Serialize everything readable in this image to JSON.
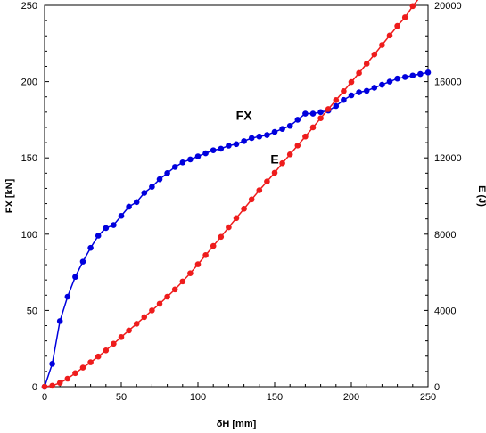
{
  "chart_data": {
    "type": "line",
    "xlabel": "δH [mm]",
    "ylabel": "FX [kN]",
    "y2label": "E (J)",
    "xlim": [
      0,
      250
    ],
    "ylim": [
      0,
      250
    ],
    "y2lim": [
      0,
      20000
    ],
    "xticks": [
      "0",
      "50",
      "100",
      "150",
      "200",
      "250"
    ],
    "yticks": [
      "0",
      "50",
      "100",
      "150",
      "200",
      "250"
    ],
    "y2ticks": [
      "0",
      "4000",
      "8000",
      "12000",
      "16000",
      "20000"
    ],
    "grid": false,
    "series": [
      {
        "name": "FX",
        "axis": "left",
        "color": "#0000dd",
        "x": [
          0,
          5,
          10,
          15,
          20,
          25,
          30,
          35,
          40,
          45,
          50,
          55,
          60,
          65,
          70,
          75,
          80,
          85,
          90,
          95,
          100,
          105,
          110,
          115,
          120,
          125,
          130,
          135,
          140,
          145,
          150,
          155,
          160,
          165,
          170,
          175,
          180,
          185,
          190,
          195,
          200,
          205,
          210,
          215,
          220,
          225,
          230,
          235,
          240,
          245,
          250
        ],
        "values": [
          0,
          15,
          43,
          59,
          72,
          82,
          91,
          99,
          104,
          106,
          112,
          118,
          121,
          127,
          131,
          136,
          140,
          144,
          147,
          149,
          151,
          153,
          155,
          156,
          158,
          159,
          161,
          163,
          164,
          165,
          167,
          169,
          171,
          175,
          179,
          179,
          180,
          181,
          184,
          188,
          191,
          193,
          194,
          196,
          198,
          200,
          202,
          203,
          204,
          205,
          206
        ]
      },
      {
        "name": "E",
        "axis": "right",
        "color": "#ee1c1c",
        "x": [
          0,
          5,
          10,
          15,
          20,
          25,
          30,
          35,
          40,
          45,
          50,
          55,
          60,
          65,
          70,
          75,
          80,
          85,
          90,
          95,
          100,
          105,
          110,
          115,
          120,
          125,
          130,
          135,
          140,
          145,
          150,
          155,
          160,
          165,
          170,
          175,
          180,
          185,
          190,
          195,
          200,
          205,
          210,
          215,
          220,
          225,
          230,
          235,
          240,
          245,
          250
        ],
        "values": [
          0,
          50,
          200,
          420,
          710,
          1000,
          1280,
          1580,
          1900,
          2250,
          2600,
          2950,
          3300,
          3650,
          4000,
          4350,
          4720,
          5100,
          5520,
          5950,
          6420,
          6900,
          7380,
          7860,
          8360,
          8840,
          9330,
          9820,
          10300,
          10760,
          11220,
          11720,
          12180,
          12650,
          13120,
          13600,
          14080,
          14560,
          15030,
          15500,
          15980,
          16450,
          16940,
          17420,
          17920,
          18420,
          18920,
          19370,
          19960,
          20460,
          20980
        ]
      }
    ],
    "annotations": [
      {
        "text": "FX",
        "x": 130,
        "y": 175
      },
      {
        "text": "E",
        "x": 150,
        "y": 11700,
        "axis": "right"
      }
    ]
  }
}
